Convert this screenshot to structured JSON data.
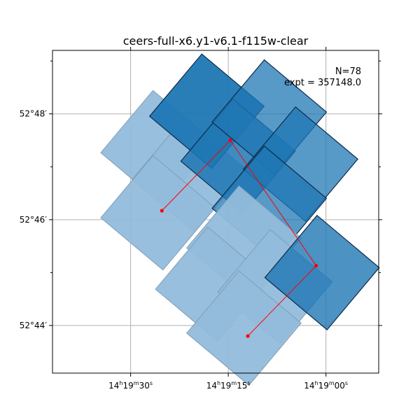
{
  "chart_data": {
    "type": "footprint-map",
    "title": "ceers-full-x6.y1-v6.1-f115w-clear",
    "annotations": {
      "n": "N=78",
      "expt": "expt = 357148.0"
    },
    "x_axis": {
      "unit": "RA (h m s)",
      "range_sec": [
        35.2,
        51.9
      ],
      "ticks": [
        {
          "sec": 39.2,
          "text": "14h19m30s"
        },
        {
          "sec": 44.2,
          "text": "14h19m15s"
        },
        {
          "sec": 49.2,
          "text": "14h19m00s"
        }
      ]
    },
    "y_axis": {
      "unit": "Dec (deg arcmin)",
      "range_arcmin": [
        43.1,
        49.2
      ],
      "ticks": [
        {
          "arcmin": 44,
          "text": "52°44′"
        },
        {
          "arcmin": 46,
          "text": "52°46′"
        },
        {
          "arcmin": 48,
          "text": "52°48′"
        }
      ],
      "minor_ticks_arcmin": [
        43.0,
        45.0,
        47.0,
        49.0
      ]
    },
    "grid": true,
    "colors": {
      "dark_fill": "#1f77b4",
      "light_fill": "#92bcdb",
      "outline": "#0d2b4a",
      "path_color": "#ff0000"
    },
    "tiles": [
      {
        "ra": 40.6,
        "dec": 47.36,
        "shade": 0.45
      },
      {
        "ra": 42.2,
        "dec": 46.85,
        "shade": 0.45
      },
      {
        "ra": 40.6,
        "dec": 46.13,
        "shade": 0.45
      },
      {
        "ra": 43.1,
        "dec": 48.05,
        "shade": 0.95
      },
      {
        "ra": 44.7,
        "dec": 47.2,
        "shade": 0.85
      },
      {
        "ra": 46.3,
        "dec": 47.94,
        "shade": 0.75
      },
      {
        "ra": 47.9,
        "dec": 47.05,
        "shade": 0.75
      },
      {
        "ra": 46.3,
        "dec": 46.31,
        "shade": 0.75
      },
      {
        "ra": 45.0,
        "dec": 45.56,
        "shade": 0.45
      },
      {
        "ra": 43.4,
        "dec": 44.78,
        "shade": 0.45
      },
      {
        "ra": 46.6,
        "dec": 44.73,
        "shade": 0.45
      },
      {
        "ra": 45.0,
        "dec": 43.95,
        "shade": 0.45
      },
      {
        "ra": 49.0,
        "dec": 45.0,
        "shade": 0.8
      }
    ],
    "path": [
      {
        "ra": 40.8,
        "dec": 46.17
      },
      {
        "ra": 44.3,
        "dec": 47.5
      },
      {
        "ra": 48.7,
        "dec": 45.13
      },
      {
        "ra": 45.2,
        "dec": 43.8
      }
    ]
  }
}
